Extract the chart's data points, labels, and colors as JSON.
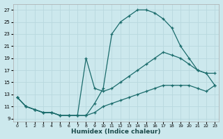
{
  "xlabel": "Humidex (Indice chaleur)",
  "bg_color": "#cce8ed",
  "grid_color": "#b8d8de",
  "line_color": "#1a6b6b",
  "xlim": [
    -0.5,
    23.5
  ],
  "ylim": [
    8.5,
    28.0
  ],
  "xticks": [
    0,
    1,
    2,
    3,
    4,
    5,
    6,
    7,
    8,
    9,
    10,
    11,
    12,
    13,
    14,
    15,
    16,
    17,
    18,
    19,
    20,
    21,
    22,
    23
  ],
  "yticks": [
    9,
    11,
    13,
    15,
    17,
    19,
    21,
    23,
    25,
    27
  ],
  "curve1_x": [
    0,
    1,
    2,
    3,
    4,
    5,
    6,
    7,
    8,
    9,
    10,
    11,
    12,
    13,
    14,
    15,
    16,
    17,
    18,
    19,
    20,
    21,
    22,
    23
  ],
  "curve1_y": [
    12.5,
    11.0,
    10.5,
    10.0,
    10.0,
    9.5,
    9.5,
    9.5,
    9.5,
    11.5,
    14.0,
    23.0,
    25.0,
    26.0,
    27.0,
    27.0,
    26.5,
    25.5,
    24.0,
    21.0,
    19.0,
    17.0,
    16.5,
    14.5
  ],
  "curve2_x": [
    0,
    1,
    2,
    3,
    4,
    5,
    6,
    7,
    8,
    9,
    10,
    11,
    12,
    13,
    14,
    15,
    16,
    17,
    18,
    19,
    20,
    21,
    22,
    23
  ],
  "curve2_y": [
    12.5,
    11.0,
    10.5,
    10.0,
    10.0,
    9.5,
    9.5,
    9.5,
    19.0,
    14.0,
    13.5,
    14.0,
    15.0,
    16.0,
    17.0,
    18.0,
    19.0,
    20.0,
    19.5,
    19.0,
    18.0,
    17.0,
    16.5,
    16.5
  ],
  "curve3_x": [
    0,
    1,
    2,
    3,
    4,
    5,
    6,
    7,
    8,
    9,
    10,
    11,
    12,
    13,
    14,
    15,
    16,
    17,
    18,
    19,
    20,
    21,
    22,
    23
  ],
  "curve3_y": [
    12.5,
    11.0,
    10.5,
    10.0,
    10.0,
    9.5,
    9.5,
    9.5,
    9.5,
    10.0,
    11.0,
    11.5,
    12.0,
    12.5,
    13.0,
    13.5,
    14.0,
    14.5,
    14.5,
    14.5,
    14.5,
    14.0,
    13.5,
    14.5
  ],
  "tick_fontsize": 5.5,
  "xlabel_fontsize": 6.5
}
